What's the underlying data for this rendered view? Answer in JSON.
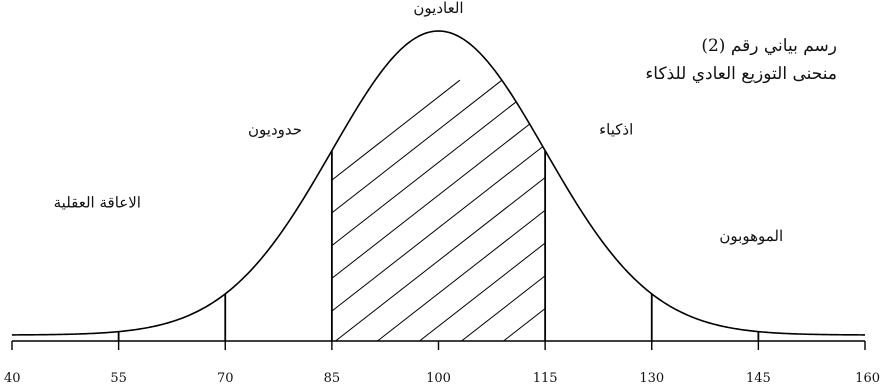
{
  "caption": {
    "title": "رسم بياني رقم (2)",
    "subtitle": "منحنى التوزيع العادي للذكاء"
  },
  "chart_data": {
    "type": "area",
    "distribution": "normal",
    "mean": 100,
    "sd": 15,
    "xlim": [
      40,
      160
    ],
    "x_ticks": [
      40,
      55,
      70,
      85,
      100,
      115,
      130,
      145,
      160
    ],
    "divider_lines": [
      55,
      70,
      85,
      115,
      130,
      145
    ],
    "shaded_range": [
      85,
      115
    ],
    "regions": [
      {
        "label": "الاعاقة العقلية",
        "x": 52,
        "density_level": 0.42
      },
      {
        "label": "حدوديون",
        "x": 77,
        "density_level": 0.66
      },
      {
        "label": "العاديون",
        "x": 100,
        "density_level": 1.06
      },
      {
        "label": "اذكياء",
        "x": 125,
        "density_level": 0.66
      },
      {
        "label": "الموهوبون",
        "x": 144,
        "density_level": 0.31
      }
    ],
    "grid": false,
    "line_color": "#000000"
  }
}
